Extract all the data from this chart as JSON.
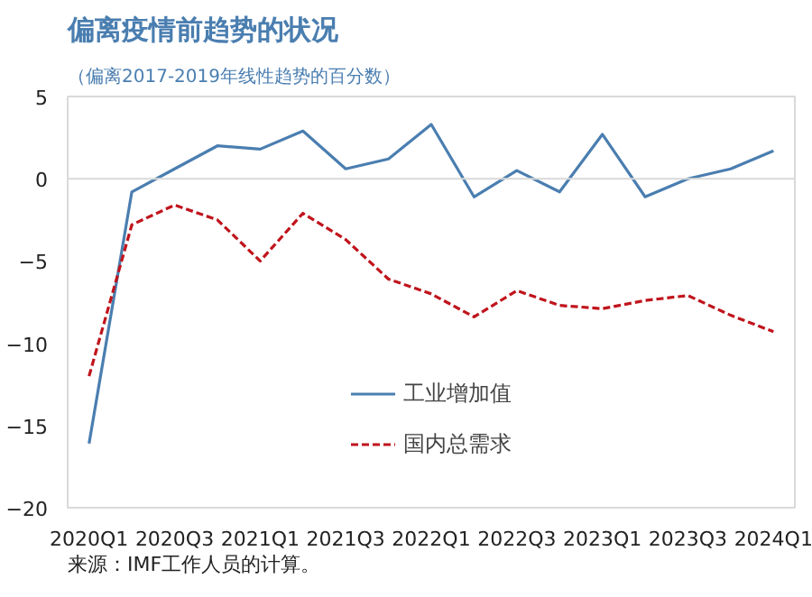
{
  "chart_data": {
    "type": "line",
    "title": "偏离疫情前趋势的状况",
    "subtitle": "（偏离2017-2019年线性趋势的百分数）",
    "categories": [
      "2020Q1",
      null,
      "2020Q3",
      null,
      "2021Q1",
      null,
      "2021Q3",
      null,
      "2022Q1",
      null,
      "2022Q3",
      null,
      "2023Q1",
      null,
      "2023Q3",
      null,
      "2024Q1"
    ],
    "series": [
      {
        "name": "工业增加值",
        "color": "#4a7eb0",
        "line_style": "solid",
        "values": [
          -16.1,
          -0.8,
          0.6,
          2.0,
          1.8,
          2.9,
          0.6,
          1.2,
          3.3,
          -1.1,
          0.5,
          -0.8,
          2.7,
          -1.1,
          0.0,
          0.6,
          1.7
        ]
      },
      {
        "name": "国内总需求",
        "color": "#c0141c",
        "line_style": "dashed",
        "values": [
          -12.0,
          -2.8,
          -1.6,
          -2.5,
          -5.0,
          -2.1,
          -3.7,
          -6.1,
          -7.0,
          -8.4,
          -6.8,
          -7.7,
          -7.9,
          -7.4,
          -7.1,
          -8.3,
          -9.3
        ]
      }
    ],
    "ylim": [
      -20,
      5
    ],
    "yticks": [
      -20,
      -15,
      -10,
      -5,
      0,
      5
    ],
    "ref_lines": [
      {
        "axis": "y",
        "value": 0,
        "color": "#d9d9d9"
      }
    ],
    "legend": "bottom",
    "grid": false,
    "annotations": [
      "来源：IMF工作人员的计算。"
    ]
  }
}
